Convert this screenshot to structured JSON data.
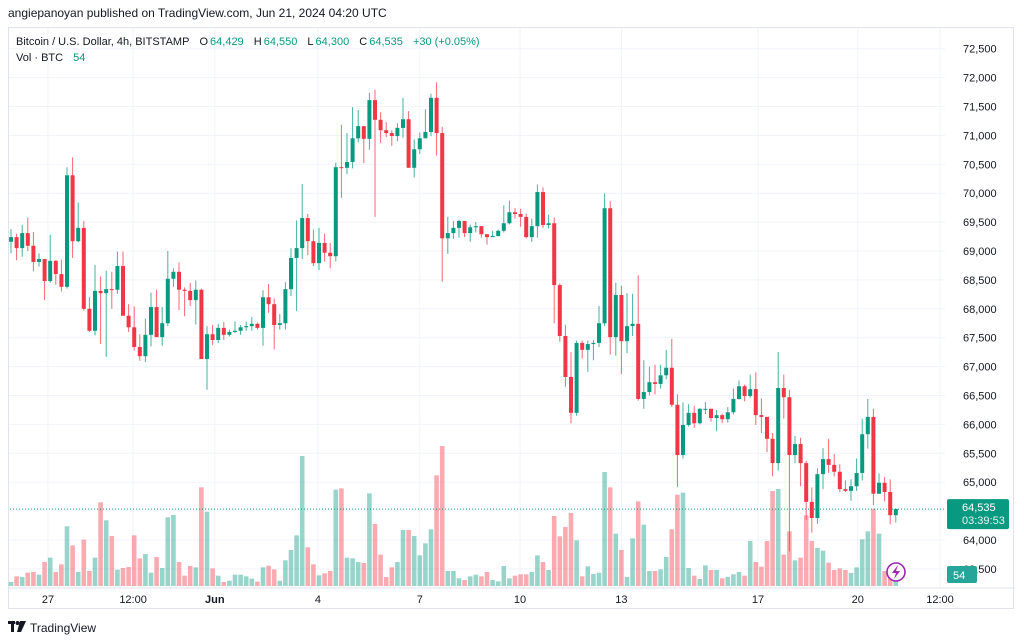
{
  "byline": "angiepanoyan published on TradingView.com, Jun 21, 2024 04:20 UTC",
  "legend": {
    "symbol": "Bitcoin / U.S. Dollar, 4h, BITSTAMP",
    "o_label": "O",
    "o": "64,429",
    "h_label": "H",
    "h": "64,550",
    "l_label": "L",
    "l": "64,300",
    "c_label": "C",
    "c": "64,535",
    "change": "+30 (+0.05%)",
    "vol_label": "Vol · BTC",
    "vol": "54"
  },
  "price_label": {
    "price": "64,535",
    "countdown": "03:39:53"
  },
  "volume_label": "54",
  "footer": {
    "brand": "TradingView"
  },
  "colors": {
    "up": "#089981",
    "down": "#f23645",
    "alert": "#9c27b0"
  },
  "chart_data": {
    "type": "candlestick",
    "title": "Bitcoin / U.S. Dollar, 4h, BITSTAMP",
    "interval": "4h",
    "ylim": [
      63220,
      72860
    ],
    "y_ticks": [
      63500,
      64000,
      65000,
      65500,
      66000,
      66500,
      67000,
      67500,
      68000,
      68500,
      69000,
      69500,
      70000,
      70500,
      71000,
      71500,
      72000,
      72500
    ],
    "y_tick_labels": [
      "63,500",
      "64,000",
      "65,000",
      "65,500",
      "66,000",
      "66,500",
      "67,000",
      "67,500",
      "68,000",
      "68,500",
      "69,000",
      "69,500",
      "70,000",
      "70,500",
      "71,000",
      "71,500",
      "72,000",
      "72,500"
    ],
    "x_ticks": [
      {
        "label": "27",
        "index": 6.6
      },
      {
        "label": "12:00",
        "index": 21.8
      },
      {
        "label": "Jun",
        "index": 36.4,
        "bold": true
      },
      {
        "label": "4",
        "index": 54.8
      },
      {
        "label": "7",
        "index": 73
      },
      {
        "label": "10",
        "index": 90.9
      },
      {
        "label": "13",
        "index": 109
      },
      {
        "label": "17",
        "index": 133.4
      },
      {
        "label": "20",
        "index": 151.2
      },
      {
        "label": "12:00",
        "index": 165.9
      }
    ],
    "last_price": 64535,
    "columns": [
      "open",
      "high",
      "low",
      "close",
      "volume"
    ],
    "candles": [
      [
        69160,
        69380,
        68960,
        69240,
        24
      ],
      [
        69240,
        69300,
        68840,
        69050,
        58
      ],
      [
        69050,
        69450,
        68900,
        69310,
        54
      ],
      [
        69310,
        69580,
        69000,
        69090,
        80
      ],
      [
        69090,
        69330,
        68650,
        68810,
        84
      ],
      [
        68810,
        68960,
        68730,
        68860,
        68
      ],
      [
        68860,
        68860,
        68150,
        68480,
        144
      ],
      [
        68480,
        69280,
        68450,
        68830,
        170
      ],
      [
        68830,
        68840,
        68420,
        68600,
        84
      ],
      [
        68600,
        68850,
        68300,
        68380,
        130
      ],
      [
        68380,
        70450,
        68350,
        70310,
        358
      ],
      [
        70310,
        70620,
        68880,
        69170,
        244
      ],
      [
        69170,
        69840,
        69150,
        69400,
        84
      ],
      [
        69400,
        69520,
        67970,
        68000,
        278
      ],
      [
        68000,
        68200,
        67600,
        67620,
        90
      ],
      [
        67620,
        68760,
        67540,
        68310,
        170
      ],
      [
        68310,
        68560,
        67390,
        68270,
        502
      ],
      [
        68270,
        68660,
        67170,
        68340,
        394
      ],
      [
        68340,
        68640,
        68000,
        68330,
        300
      ],
      [
        68330,
        68990,
        68260,
        68740,
        98
      ],
      [
        68740,
        68990,
        67890,
        67880,
        108
      ],
      [
        67880,
        68080,
        67600,
        67680,
        114
      ],
      [
        67680,
        68040,
        67280,
        67340,
        304
      ],
      [
        67340,
        67560,
        67100,
        67180,
        166
      ],
      [
        67180,
        67830,
        67080,
        67550,
        192
      ],
      [
        67550,
        68280,
        67350,
        68030,
        80
      ],
      [
        68030,
        68330,
        67510,
        67510,
        174
      ],
      [
        67510,
        68030,
        67360,
        67750,
        108
      ],
      [
        67750,
        69000,
        67700,
        68520,
        412
      ],
      [
        68520,
        68700,
        68380,
        68640,
        426
      ],
      [
        68640,
        68800,
        67980,
        68330,
        144
      ],
      [
        68330,
        68370,
        67870,
        68310,
        62
      ],
      [
        68310,
        68450,
        68050,
        68150,
        120
      ],
      [
        68150,
        68490,
        67730,
        68330,
        112
      ],
      [
        68330,
        68350,
        67130,
        67130,
        592
      ],
      [
        67130,
        67700,
        66600,
        67560,
        446
      ],
      [
        67560,
        67720,
        67370,
        67460,
        106
      ],
      [
        67460,
        67740,
        67410,
        67670,
        62
      ],
      [
        67670,
        67770,
        67460,
        67550,
        24
      ],
      [
        67550,
        67640,
        67520,
        67600,
        32
      ],
      [
        67600,
        67780,
        67580,
        67620,
        68
      ],
      [
        67620,
        67720,
        67550,
        67680,
        68
      ],
      [
        67680,
        67780,
        67620,
        67700,
        58
      ],
      [
        67700,
        67860,
        67620,
        67740,
        44
      ],
      [
        67740,
        67760,
        67640,
        67670,
        26
      ],
      [
        67670,
        68320,
        67360,
        68200,
        112
      ],
      [
        68200,
        68430,
        67930,
        68080,
        122
      ],
      [
        68080,
        68180,
        67300,
        67720,
        100
      ],
      [
        67720,
        67910,
        67640,
        67750,
        32
      ],
      [
        67750,
        68460,
        67640,
        68340,
        154
      ],
      [
        68340,
        69050,
        68220,
        68880,
        216
      ],
      [
        68880,
        69530,
        67960,
        69050,
        304
      ],
      [
        69050,
        70160,
        68860,
        69570,
        780
      ],
      [
        69570,
        69640,
        68930,
        69170,
        232
      ],
      [
        69170,
        69370,
        68740,
        68790,
        130
      ],
      [
        68790,
        69400,
        68670,
        69140,
        64
      ],
      [
        69140,
        69300,
        68820,
        68970,
        76
      ],
      [
        68970,
        69140,
        68700,
        68910,
        90
      ],
      [
        68910,
        70530,
        68820,
        70450,
        578
      ],
      [
        70450,
        71180,
        69920,
        70440,
        586
      ],
      [
        70440,
        71040,
        70330,
        70540,
        170
      ],
      [
        70540,
        71490,
        70430,
        70950,
        166
      ],
      [
        70950,
        71440,
        70880,
        71160,
        144
      ],
      [
        71160,
        71160,
        70520,
        70940,
        138
      ],
      [
        70940,
        71740,
        70750,
        71610,
        556
      ],
      [
        71610,
        71790,
        69590,
        71270,
        372
      ],
      [
        71270,
        71400,
        70870,
        71090,
        188
      ],
      [
        71090,
        71230,
        70970,
        71040,
        54
      ],
      [
        71040,
        71090,
        70820,
        70990,
        112
      ],
      [
        70990,
        71210,
        70900,
        71130,
        144
      ],
      [
        71130,
        71650,
        70960,
        71280,
        336
      ],
      [
        71280,
        71420,
        70440,
        70440,
        336
      ],
      [
        70440,
        70930,
        70270,
        70760,
        300
      ],
      [
        70760,
        71050,
        70680,
        70950,
        184
      ],
      [
        70950,
        71450,
        70950,
        71060,
        256
      ],
      [
        71060,
        71720,
        70990,
        71650,
        340
      ],
      [
        71650,
        71920,
        70650,
        71040,
        664
      ],
      [
        71040,
        71150,
        68470,
        69220,
        840
      ],
      [
        69220,
        69590,
        68950,
        69310,
        90
      ],
      [
        69310,
        69520,
        69210,
        69400,
        90
      ],
      [
        69400,
        69540,
        69230,
        69520,
        46
      ],
      [
        69520,
        69520,
        69240,
        69310,
        36
      ],
      [
        69310,
        69460,
        69160,
        69410,
        58
      ],
      [
        69410,
        69500,
        69320,
        69430,
        68
      ],
      [
        69430,
        69430,
        69230,
        69290,
        58
      ],
      [
        69290,
        69290,
        69110,
        69240,
        84
      ],
      [
        69240,
        69350,
        69240,
        69260,
        36
      ],
      [
        69260,
        69370,
        69250,
        69350,
        28
      ],
      [
        69350,
        69790,
        69320,
        69480,
        120
      ],
      [
        69480,
        69870,
        69460,
        69670,
        46
      ],
      [
        69670,
        69740,
        69560,
        69640,
        62
      ],
      [
        69640,
        69730,
        69420,
        69590,
        70
      ],
      [
        69590,
        69650,
        69220,
        69240,
        70
      ],
      [
        69240,
        69560,
        69160,
        69430,
        84
      ],
      [
        69430,
        70150,
        69230,
        70020,
        184
      ],
      [
        70020,
        70100,
        69400,
        69450,
        144
      ],
      [
        69450,
        69630,
        69390,
        69480,
        96
      ],
      [
        69480,
        69580,
        67750,
        68410,
        420
      ],
      [
        68410,
        68440,
        67430,
        67530,
        298
      ],
      [
        67530,
        67720,
        66650,
        66820,
        354
      ],
      [
        66820,
        67250,
        66020,
        66200,
        438
      ],
      [
        66200,
        67450,
        66150,
        67410,
        274
      ],
      [
        67410,
        67450,
        67140,
        67290,
        58
      ],
      [
        67290,
        67450,
        66910,
        67390,
        118
      ],
      [
        67390,
        67460,
        67110,
        67410,
        72
      ],
      [
        67410,
        68050,
        67340,
        67750,
        80
      ],
      [
        67750,
        70000,
        67700,
        69740,
        684
      ],
      [
        69740,
        69860,
        67210,
        67510,
        592
      ],
      [
        67510,
        68450,
        67190,
        68240,
        314
      ],
      [
        68240,
        68400,
        66870,
        67440,
        216
      ],
      [
        67440,
        68270,
        67230,
        67700,
        54
      ],
      [
        67700,
        68260,
        67530,
        67740,
        286
      ],
      [
        67740,
        68580,
        66410,
        66440,
        508
      ],
      [
        66440,
        67110,
        66270,
        66560,
        368
      ],
      [
        66560,
        67000,
        66500,
        66730,
        90
      ],
      [
        66730,
        67030,
        66520,
        66700,
        90
      ],
      [
        66700,
        67030,
        66620,
        66850,
        100
      ],
      [
        66850,
        67290,
        66780,
        66980,
        174
      ],
      [
        66980,
        67480,
        66300,
        66340,
        340
      ],
      [
        66340,
        66520,
        64920,
        65470,
        548
      ],
      [
        65470,
        66380,
        65410,
        65990,
        560
      ],
      [
        65990,
        66350,
        65960,
        66200,
        108
      ],
      [
        66200,
        66320,
        65940,
        66020,
        62
      ],
      [
        66020,
        66280,
        66000,
        66270,
        42
      ],
      [
        66270,
        66390,
        66180,
        66270,
        124
      ],
      [
        66270,
        66270,
        66050,
        66110,
        96
      ],
      [
        66110,
        66250,
        65880,
        66160,
        96
      ],
      [
        66160,
        66180,
        66020,
        66090,
        46
      ],
      [
        66090,
        66300,
        66030,
        66210,
        54
      ],
      [
        66210,
        66620,
        66170,
        66440,
        70
      ],
      [
        66440,
        66760,
        66430,
        66660,
        84
      ],
      [
        66660,
        66690,
        66400,
        66490,
        62
      ],
      [
        66490,
        66860,
        66460,
        66610,
        270
      ],
      [
        66610,
        66900,
        65990,
        66160,
        144
      ],
      [
        66160,
        66450,
        65850,
        66130,
        116
      ],
      [
        66130,
        66130,
        65520,
        65750,
        270
      ],
      [
        65750,
        65850,
        65100,
        65330,
        570
      ],
      [
        65330,
        67250,
        65200,
        66630,
        582
      ],
      [
        66630,
        66860,
        66100,
        66470,
        188
      ],
      [
        66470,
        66600,
        63800,
        65470,
        328
      ],
      [
        65470,
        65800,
        65330,
        65660,
        154
      ],
      [
        65660,
        65770,
        64930,
        65330,
        170
      ],
      [
        65330,
        65370,
        64350,
        64660,
        424
      ],
      [
        64660,
        64910,
        64130,
        64380,
        270
      ],
      [
        64380,
        65240,
        64280,
        65140,
        228
      ],
      [
        65140,
        65590,
        64880,
        65400,
        212
      ],
      [
        65400,
        65750,
        65160,
        65300,
        140
      ],
      [
        65300,
        65490,
        65100,
        65180,
        96
      ],
      [
        65180,
        65310,
        64830,
        64880,
        106
      ],
      [
        64880,
        65030,
        64830,
        64850,
        96
      ],
      [
        64850,
        65050,
        64680,
        64930,
        78
      ],
      [
        64930,
        65410,
        64850,
        65160,
        112
      ],
      [
        65160,
        66100,
        65030,
        65830,
        280
      ],
      [
        65830,
        66440,
        65580,
        66130,
        328
      ],
      [
        66130,
        66270,
        64600,
        64800,
        464
      ],
      [
        64800,
        65150,
        64800,
        64990,
        314
      ],
      [
        64990,
        65090,
        64670,
        64830,
        90
      ],
      [
        64830,
        65050,
        64270,
        64429,
        64
      ],
      [
        64429,
        64550,
        64300,
        64535,
        54
      ]
    ]
  }
}
